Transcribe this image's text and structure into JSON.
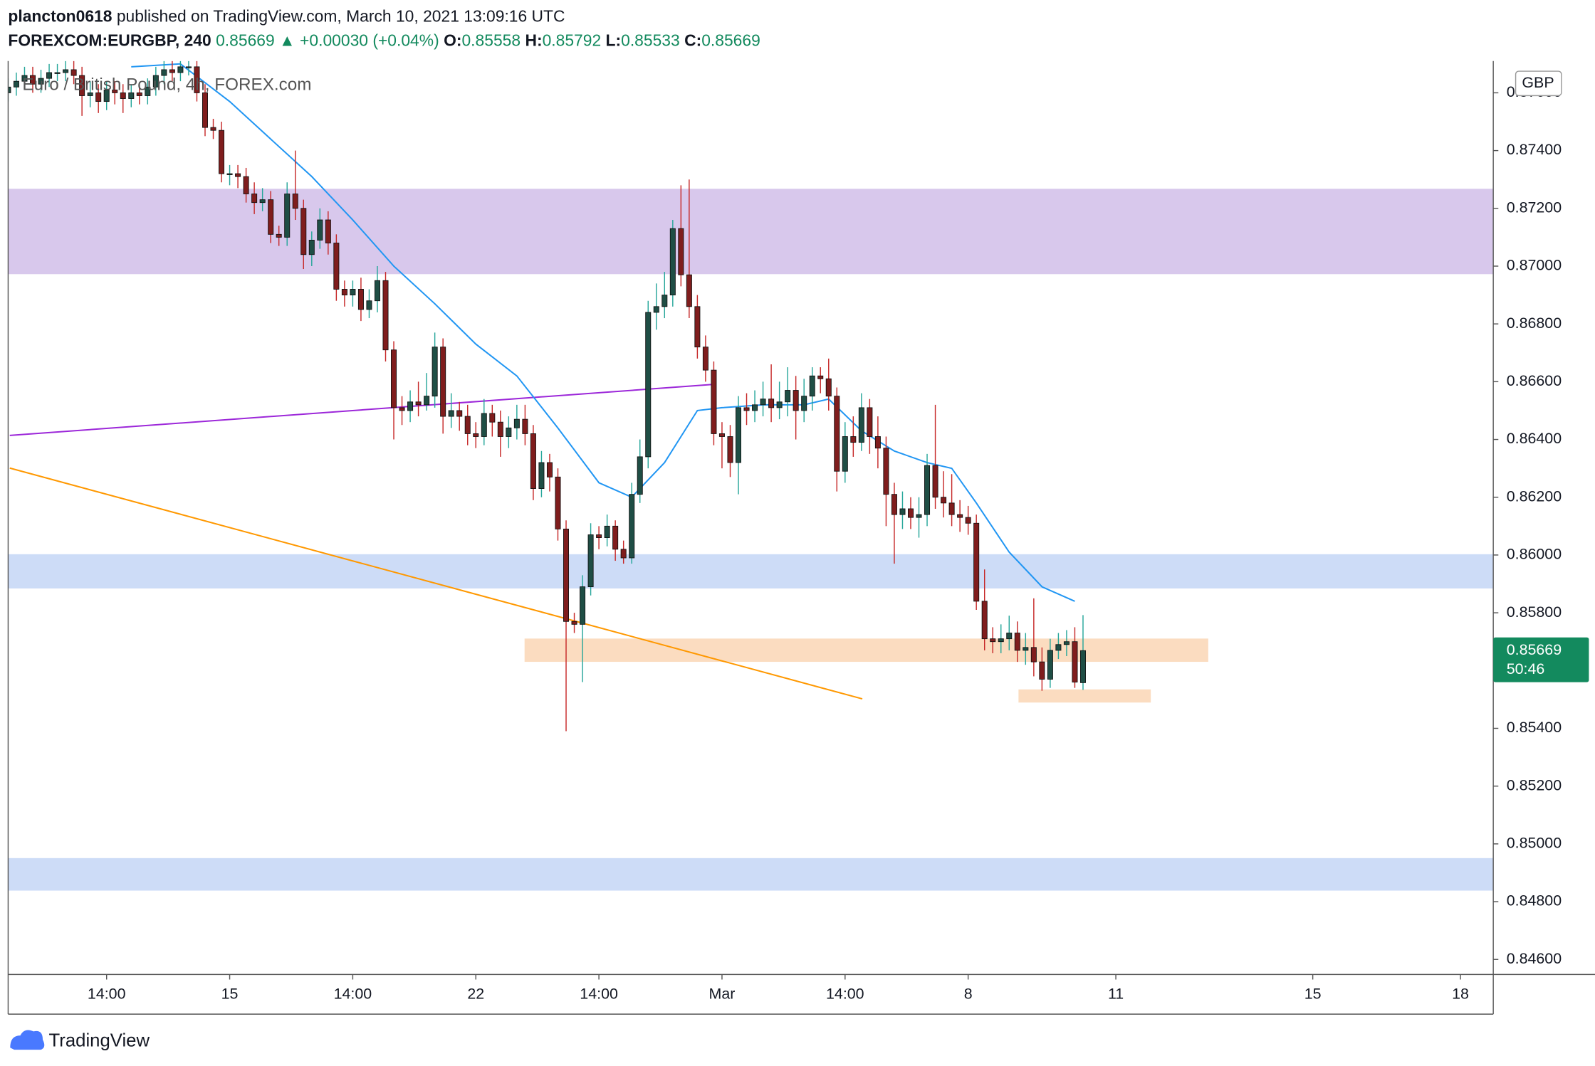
{
  "header": {
    "user": "plancton0618",
    "published": "published on TradingView.com, March 10, 2021 13:09:16 UTC",
    "symbol": "FOREXCOM:EURGBP, 240",
    "arrow": "▲",
    "change": "+0.00030 (+0.04%)",
    "o_label": "O:",
    "h_label": "H:",
    "l_label": "L:",
    "c_label": "C:",
    "legend": "Euro / British Pound, 4h, FOREX.com",
    "currency": "GBP",
    "countdown": "50:46",
    "brand": "TradingView"
  },
  "chart_data": {
    "type": "candlestick",
    "x": [
      -27,
      -26,
      -25,
      -24,
      -23,
      -22,
      -21,
      -20,
      -19,
      -18,
      -17,
      -16,
      -15,
      -14,
      -13,
      -12,
      -11,
      -10,
      -9,
      -8,
      -7,
      -6,
      -5,
      -4,
      -3,
      -2,
      -1,
      0,
      1,
      2,
      3,
      4,
      5,
      6,
      7,
      8,
      9,
      10,
      11,
      12,
      13,
      14,
      15,
      16,
      17,
      18,
      19,
      20,
      21,
      22,
      23,
      24,
      25,
      26,
      27,
      28,
      29,
      30,
      31,
      32,
      33,
      34,
      35,
      36,
      37,
      38,
      39,
      40,
      41,
      42,
      43,
      44,
      45,
      46,
      47,
      48,
      49,
      50,
      51,
      52,
      53,
      54,
      55,
      56,
      57,
      58,
      59,
      60,
      61,
      62,
      63,
      64,
      65,
      66,
      67,
      68,
      69,
      70,
      71,
      72,
      73,
      74,
      75,
      76,
      77,
      78,
      79,
      80,
      81,
      82,
      83,
      84,
      85,
      86,
      87,
      88,
      89,
      90,
      91,
      92,
      93,
      94,
      95,
      96,
      97,
      98,
      99,
      100,
      101,
      102,
      103,
      104
    ],
    "open": [
      0.876,
      0.8762,
      0.8764,
      0.8766,
      0.8763,
      0.8765,
      0.8767,
      0.8767,
      0.8768,
      0.8766,
      0.8759,
      0.876,
      0.8757,
      0.8761,
      0.876,
      0.8758,
      0.876,
      0.8759,
      0.8762,
      0.8766,
      0.8768,
      0.8767,
      0.8769,
      0.8769,
      0.876,
      0.8748,
      0.8747,
      0.8732,
      0.8732,
      0.8731,
      0.8725,
      0.8722,
      0.8723,
      0.8711,
      0.871,
      0.8725,
      0.872,
      0.8704,
      0.8709,
      0.8716,
      0.8708,
      0.8692,
      0.869,
      0.8692,
      0.8685,
      0.8688,
      0.8695,
      0.8671,
      0.8651,
      0.865,
      0.8653,
      0.8652,
      0.8655,
      0.8672,
      0.8648,
      0.865,
      0.8648,
      0.8642,
      0.8641,
      0.8649,
      0.8646,
      0.8641,
      0.8644,
      0.8647,
      0.8642,
      0.8623,
      0.8632,
      0.8627,
      0.8609,
      0.8577,
      0.8576,
      0.8589,
      0.8607,
      0.8606,
      0.861,
      0.8602,
      0.8599,
      0.8621,
      0.8634,
      0.8684,
      0.8686,
      0.869,
      0.8713,
      0.8697,
      0.8686,
      0.8672,
      0.8664,
      0.8642,
      0.8641,
      0.8632,
      0.8651,
      0.865,
      0.8652,
      0.8654,
      0.8651,
      0.8653,
      0.8657,
      0.865,
      0.8655,
      0.8662,
      0.8661,
      0.8655,
      0.8629,
      0.8641,
      0.8639,
      0.8651,
      0.8641,
      0.8637,
      0.8621,
      0.8614,
      0.8616,
      0.8613,
      0.8614,
      0.8631,
      0.862,
      0.8618,
      0.8614,
      0.8613,
      0.8611,
      0.8584,
      0.8571,
      0.857,
      0.8571,
      0.8573,
      0.8567,
      0.8568,
      0.8563,
      0.8557,
      0.8567,
      0.8569,
      0.857,
      0.85558
    ],
    "high": [
      0.8765,
      0.8767,
      0.8769,
      0.8769,
      0.8768,
      0.877,
      0.877,
      0.8771,
      0.8771,
      0.8769,
      0.8764,
      0.8763,
      0.8764,
      0.8764,
      0.8763,
      0.8763,
      0.8763,
      0.8765,
      0.8769,
      0.8771,
      0.8771,
      0.8771,
      0.8771,
      0.8771,
      0.8763,
      0.8751,
      0.875,
      0.8735,
      0.8735,
      0.8734,
      0.8729,
      0.8727,
      0.8726,
      0.8714,
      0.8729,
      0.874,
      0.8723,
      0.8712,
      0.872,
      0.8719,
      0.8711,
      0.8695,
      0.8695,
      0.8696,
      0.8692,
      0.87,
      0.8698,
      0.8674,
      0.8655,
      0.8657,
      0.866,
      0.8663,
      0.8677,
      0.8675,
      0.8656,
      0.8653,
      0.8652,
      0.8646,
      0.8654,
      0.8652,
      0.865,
      0.8648,
      0.8652,
      0.8652,
      0.8645,
      0.8636,
      0.8635,
      0.863,
      0.8612,
      0.858,
      0.8593,
      0.8611,
      0.861,
      0.8614,
      0.8612,
      0.8605,
      0.8625,
      0.864,
      0.8688,
      0.8694,
      0.8698,
      0.8716,
      0.8728,
      0.873,
      0.869,
      0.8676,
      0.8667,
      0.8646,
      0.8645,
      0.8655,
      0.8656,
      0.8657,
      0.866,
      0.8666,
      0.866,
      0.8665,
      0.8662,
      0.8661,
      0.8665,
      0.8665,
      0.8668,
      0.8658,
      0.8646,
      0.8648,
      0.8656,
      0.8654,
      0.8648,
      0.8641,
      0.8625,
      0.8622,
      0.862,
      0.862,
      0.8635,
      0.8652,
      0.8629,
      0.8628,
      0.8619,
      0.8617,
      0.8614,
      0.8595,
      0.8575,
      0.8576,
      0.8579,
      0.8577,
      0.8573,
      0.8585,
      0.8568,
      0.8571,
      0.8573,
      0.8574,
      0.8575,
      0.85792
    ],
    "low": [
      0.8757,
      0.8759,
      0.8761,
      0.876,
      0.876,
      0.8762,
      0.8764,
      0.8764,
      0.8763,
      0.8752,
      0.8755,
      0.8753,
      0.8754,
      0.8756,
      0.8753,
      0.8755,
      0.8756,
      0.8756,
      0.8759,
      0.8763,
      0.8764,
      0.8764,
      0.8766,
      0.8757,
      0.8745,
      0.8744,
      0.8729,
      0.8728,
      0.8727,
      0.8722,
      0.8718,
      0.8719,
      0.8708,
      0.8707,
      0.8707,
      0.8716,
      0.8699,
      0.87,
      0.8706,
      0.8704,
      0.8688,
      0.8686,
      0.8686,
      0.8681,
      0.8682,
      0.8684,
      0.8667,
      0.864,
      0.8645,
      0.8646,
      0.8648,
      0.865,
      0.8651,
      0.8642,
      0.8644,
      0.8643,
      0.8638,
      0.8637,
      0.8638,
      0.8641,
      0.8634,
      0.8637,
      0.864,
      0.8638,
      0.8619,
      0.862,
      0.8622,
      0.8605,
      0.8539,
      0.8573,
      0.8556,
      0.8586,
      0.8602,
      0.8603,
      0.8598,
      0.8597,
      0.8597,
      0.8618,
      0.863,
      0.8678,
      0.8682,
      0.8686,
      0.8693,
      0.8682,
      0.8668,
      0.866,
      0.8638,
      0.863,
      0.8627,
      0.8621,
      0.8645,
      0.8646,
      0.8648,
      0.8646,
      0.8647,
      0.8648,
      0.864,
      0.8646,
      0.865,
      0.8656,
      0.865,
      0.8622,
      0.8625,
      0.8634,
      0.8636,
      0.8635,
      0.863,
      0.861,
      0.8597,
      0.8609,
      0.8609,
      0.8606,
      0.861,
      0.8616,
      0.8613,
      0.861,
      0.8608,
      0.8607,
      0.8581,
      0.8567,
      0.8566,
      0.8566,
      0.8567,
      0.8563,
      0.8562,
      0.8558,
      0.8553,
      0.8554,
      0.8564,
      0.8565,
      0.8554,
      0.85533
    ],
    "close": [
      0.8762,
      0.8764,
      0.8766,
      0.8763,
      0.8765,
      0.8767,
      0.8767,
      0.8768,
      0.8766,
      0.8759,
      0.876,
      0.8757,
      0.8761,
      0.876,
      0.8758,
      0.876,
      0.8759,
      0.8762,
      0.8766,
      0.8768,
      0.8767,
      0.8769,
      0.8769,
      0.876,
      0.8748,
      0.8747,
      0.8732,
      0.8732,
      0.8731,
      0.8725,
      0.8722,
      0.8723,
      0.8711,
      0.871,
      0.8725,
      0.872,
      0.8704,
      0.8709,
      0.8716,
      0.8708,
      0.8692,
      0.869,
      0.8692,
      0.8685,
      0.8688,
      0.8695,
      0.8671,
      0.8651,
      0.865,
      0.8653,
      0.8652,
      0.8655,
      0.8672,
      0.8648,
      0.865,
      0.8648,
      0.8642,
      0.8641,
      0.8649,
      0.8646,
      0.8641,
      0.8644,
      0.8647,
      0.8642,
      0.8623,
      0.8632,
      0.8627,
      0.8609,
      0.8577,
      0.8576,
      0.8589,
      0.8607,
      0.8606,
      0.861,
      0.8602,
      0.8599,
      0.8621,
      0.8634,
      0.8684,
      0.8686,
      0.869,
      0.8713,
      0.8697,
      0.8686,
      0.8672,
      0.8664,
      0.8642,
      0.8641,
      0.8632,
      0.8651,
      0.865,
      0.8652,
      0.8654,
      0.8651,
      0.8653,
      0.8657,
      0.865,
      0.8655,
      0.8662,
      0.8661,
      0.8655,
      0.8629,
      0.8641,
      0.8639,
      0.8651,
      0.8641,
      0.8637,
      0.8621,
      0.8614,
      0.8616,
      0.8613,
      0.8614,
      0.8631,
      0.862,
      0.8618,
      0.8614,
      0.8613,
      0.8611,
      0.8584,
      0.8571,
      0.857,
      0.8571,
      0.8573,
      0.8567,
      0.8568,
      0.8563,
      0.8557,
      0.8567,
      0.8569,
      0.857,
      0.8556,
      0.85669
    ],
    "up_color": "#26a69a",
    "down_color": "#c62828",
    "up_body": "#1f4e45",
    "down_body": "#7f1d1d",
    "moving_average": {
      "color": "#2196f3",
      "x": [
        -12,
        -6,
        0,
        5,
        10,
        15,
        20,
        25,
        30,
        35,
        40,
        45,
        49,
        53,
        57,
        60,
        65,
        70,
        73,
        77,
        81,
        85,
        88,
        91,
        95,
        99,
        103
      ],
      "values": [
        0.8769,
        0.877,
        0.8757,
        0.8744,
        0.8731,
        0.8716,
        0.87,
        0.8687,
        0.8673,
        0.8662,
        0.8644,
        0.8625,
        0.862,
        0.8632,
        0.865,
        0.8651,
        0.8652,
        0.8652,
        0.8654,
        0.8643,
        0.8636,
        0.8632,
        0.863,
        0.8618,
        0.8601,
        0.8589,
        0.8584
      ]
    },
    "zones": [
      {
        "color": "#d8c8ec",
        "y": [
          0.86974,
          0.87266
        ]
      },
      {
        "color": "#cddcf7",
        "y": [
          0.85886,
          0.86001
        ]
      },
      {
        "color": "#cddcf7",
        "y": [
          0.8484,
          0.84949
        ]
      },
      {
        "color": "#fbdcc0",
        "y": [
          0.85632,
          0.85709
        ],
        "x": [
          36.0,
          119.2
        ]
      },
      {
        "color": "#fbdcc0",
        "y": [
          0.85491,
          0.85533
        ],
        "x": [
          96.2,
          112.2
        ]
      }
    ],
    "trend_lines": [
      {
        "color": "#9c27d9",
        "x": [
          -26.8,
          58.7
        ],
        "y": [
          0.86414,
          0.8659
        ]
      },
      {
        "color": "#ff9800",
        "x": [
          -26.8,
          77.1
        ],
        "y": [
          0.86301,
          0.85502
        ]
      }
    ],
    "price_color": "#138a5e",
    "xlim": [
      -27,
      154
    ],
    "ylim": [
      0.84548,
      0.8771
    ],
    "xticks": [
      {
        "value": -15,
        "label": "14:00"
      },
      {
        "value": 0,
        "label": "15"
      },
      {
        "value": 15,
        "label": "14:00"
      },
      {
        "value": 30,
        "label": "22"
      },
      {
        "value": 45,
        "label": "14:00"
      },
      {
        "value": 60,
        "label": "Mar"
      },
      {
        "value": 75,
        "label": "14:00"
      },
      {
        "value": 90,
        "label": "8"
      },
      {
        "value": 108,
        "label": "11"
      },
      {
        "value": 132,
        "label": "15"
      },
      {
        "value": 150,
        "label": "18"
      }
    ],
    "yticks": [
      {
        "value": 0.846,
        "label": "0.84600"
      },
      {
        "value": 0.848,
        "label": "0.84800"
      },
      {
        "value": 0.85,
        "label": "0.85000"
      },
      {
        "value": 0.852,
        "label": "0.85200"
      },
      {
        "value": 0.854,
        "label": "0.85400"
      },
      {
        "value": 0.856,
        "label": "0.85600"
      },
      {
        "value": 0.858,
        "label": "0.85800"
      },
      {
        "value": 0.86,
        "label": "0.86000"
      },
      {
        "value": 0.862,
        "label": "0.86200"
      },
      {
        "value": 0.864,
        "label": "0.86400"
      },
      {
        "value": 0.866,
        "label": "0.86600"
      },
      {
        "value": 0.868,
        "label": "0.86800"
      },
      {
        "value": 0.87,
        "label": "0.87000"
      },
      {
        "value": 0.872,
        "label": "0.87200"
      },
      {
        "value": 0.874,
        "label": "0.87400"
      },
      {
        "value": 0.876,
        "label": "0.87600"
      }
    ]
  }
}
